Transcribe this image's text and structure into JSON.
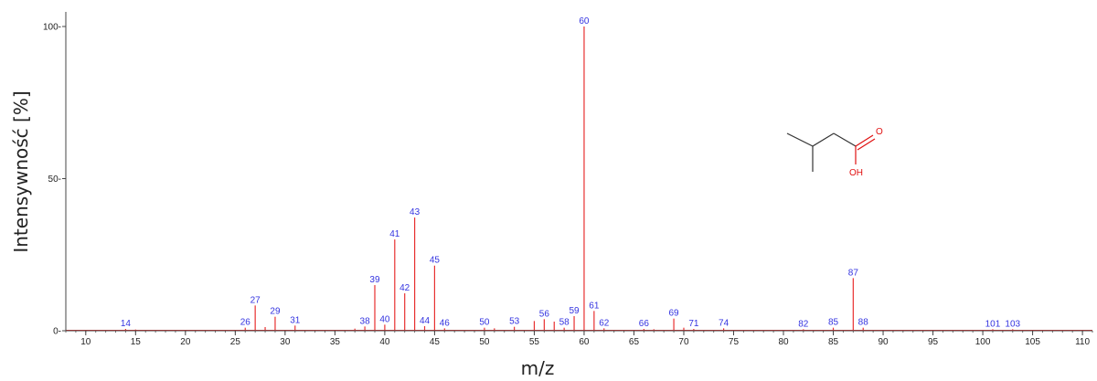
{
  "chart_data": {
    "type": "bar",
    "title": "",
    "xlabel": "m/z",
    "ylabel": "Intensywność [%]",
    "xlim": [
      8,
      111
    ],
    "ylim": [
      0,
      100
    ],
    "x_ticks": [
      10,
      15,
      20,
      25,
      30,
      35,
      40,
      45,
      50,
      55,
      60,
      65,
      70,
      75,
      80,
      85,
      90,
      95,
      100,
      105,
      110
    ],
    "y_ticks": [
      0,
      50,
      100
    ],
    "y_tick_labels": [
      "0",
      "50",
      "100"
    ],
    "peak_color": "#e83030",
    "label_color": "#3333e0",
    "peaks": [
      {
        "mz": 14,
        "intensity": 0.6,
        "label": "14"
      },
      {
        "mz": 15,
        "intensity": 0.4
      },
      {
        "mz": 26,
        "intensity": 1.0,
        "label": "26"
      },
      {
        "mz": 27,
        "intensity": 8.3,
        "label": "27"
      },
      {
        "mz": 28,
        "intensity": 1.2
      },
      {
        "mz": 29,
        "intensity": 4.6,
        "label": "29"
      },
      {
        "mz": 30,
        "intensity": 0.3
      },
      {
        "mz": 31,
        "intensity": 1.7,
        "label": "31"
      },
      {
        "mz": 37,
        "intensity": 0.7
      },
      {
        "mz": 38,
        "intensity": 1.4,
        "label": "38"
      },
      {
        "mz": 39,
        "intensity": 15.0,
        "label": "39"
      },
      {
        "mz": 40,
        "intensity": 2.0,
        "label": "40"
      },
      {
        "mz": 41,
        "intensity": 30.0,
        "label": "41"
      },
      {
        "mz": 42,
        "intensity": 12.3,
        "label": "42"
      },
      {
        "mz": 43,
        "intensity": 37.2,
        "label": "43"
      },
      {
        "mz": 44,
        "intensity": 1.5,
        "label": "44"
      },
      {
        "mz": 45,
        "intensity": 21.4,
        "label": "45"
      },
      {
        "mz": 46,
        "intensity": 0.8,
        "label": "46"
      },
      {
        "mz": 50,
        "intensity": 1.0,
        "label": "50"
      },
      {
        "mz": 51,
        "intensity": 0.8
      },
      {
        "mz": 53,
        "intensity": 1.3,
        "label": "53"
      },
      {
        "mz": 55,
        "intensity": 3.2
      },
      {
        "mz": 56,
        "intensity": 3.8,
        "label": "56"
      },
      {
        "mz": 57,
        "intensity": 3.0
      },
      {
        "mz": 58,
        "intensity": 1.0,
        "label": "58"
      },
      {
        "mz": 59,
        "intensity": 4.8,
        "label": "59"
      },
      {
        "mz": 60,
        "intensity": 100,
        "label": "60"
      },
      {
        "mz": 61,
        "intensity": 6.5,
        "label": "61"
      },
      {
        "mz": 62,
        "intensity": 0.8,
        "label": "62"
      },
      {
        "mz": 66,
        "intensity": 0.6,
        "label": "66"
      },
      {
        "mz": 67,
        "intensity": 0.5
      },
      {
        "mz": 69,
        "intensity": 4.0,
        "label": "69"
      },
      {
        "mz": 70,
        "intensity": 1.0
      },
      {
        "mz": 71,
        "intensity": 0.6,
        "label": "71"
      },
      {
        "mz": 74,
        "intensity": 0.8,
        "label": "74"
      },
      {
        "mz": 82,
        "intensity": 0.5,
        "label": "82"
      },
      {
        "mz": 85,
        "intensity": 1.0,
        "label": "85"
      },
      {
        "mz": 87,
        "intensity": 17.3,
        "label": "87"
      },
      {
        "mz": 88,
        "intensity": 1.0,
        "label": "88"
      },
      {
        "mz": 101,
        "intensity": 0.5,
        "label": "101"
      },
      {
        "mz": 103,
        "intensity": 0.5,
        "label": "103"
      }
    ]
  },
  "structure": {
    "oxygen_label": "O",
    "hydroxyl_label": "OH",
    "bond_color": "#333333",
    "heteroatom_color": "#e01010"
  }
}
